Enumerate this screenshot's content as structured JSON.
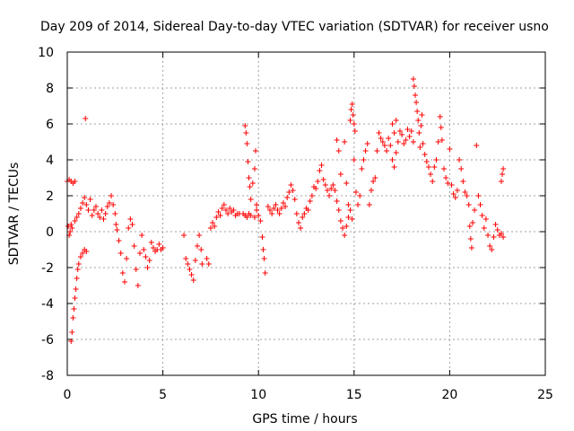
{
  "chart_data": {
    "type": "scatter",
    "title": "Day 209 of 2014, Sidereal Day-to-day VTEC variation (SDTVAR) for receiver usno",
    "xlabel": "GPS time / hours",
    "ylabel": "SDTVAR / TECUs",
    "xlim": [
      0,
      25
    ],
    "ylim": [
      -8,
      10
    ],
    "xticks": [
      "0",
      "5",
      "10",
      "15",
      "20",
      "25"
    ],
    "yticks": [
      "-8",
      "-6",
      "-4",
      "-2",
      "0",
      "2",
      "4",
      "6",
      "8",
      "10"
    ],
    "grid": true,
    "marker": "+",
    "color": "#ff0000",
    "series": [
      {
        "name": "SDTVAR",
        "points": [
          [
            0.0,
            2.8
          ],
          [
            0.1,
            2.9
          ],
          [
            0.2,
            2.8
          ],
          [
            0.3,
            2.7
          ],
          [
            0.4,
            2.8
          ],
          [
            0.05,
            0.3
          ],
          [
            0.1,
            -0.2
          ],
          [
            0.15,
            0.0
          ],
          [
            0.2,
            0.4
          ],
          [
            0.25,
            0.2
          ],
          [
            0.2,
            -6.1
          ],
          [
            0.25,
            -5.6
          ],
          [
            0.3,
            -4.8
          ],
          [
            0.35,
            -4.3
          ],
          [
            0.4,
            -3.7
          ],
          [
            0.45,
            -3.2
          ],
          [
            0.5,
            -2.6
          ],
          [
            0.55,
            -2.1
          ],
          [
            0.6,
            -1.8
          ],
          [
            0.7,
            -1.4
          ],
          [
            0.8,
            -1.2
          ],
          [
            0.9,
            -1.0
          ],
          [
            1.0,
            -1.1
          ],
          [
            0.4,
            0.6
          ],
          [
            0.5,
            0.8
          ],
          [
            0.6,
            1.0
          ],
          [
            0.7,
            1.3
          ],
          [
            0.8,
            1.6
          ],
          [
            0.9,
            1.9
          ],
          [
            1.0,
            1.5
          ],
          [
            1.1,
            1.2
          ],
          [
            1.2,
            1.8
          ],
          [
            0.95,
            6.3
          ],
          [
            1.3,
            0.9
          ],
          [
            1.4,
            1.2
          ],
          [
            1.5,
            1.4
          ],
          [
            1.6,
            1.0
          ],
          [
            1.7,
            0.8
          ],
          [
            1.8,
            1.2
          ],
          [
            1.9,
            0.7
          ],
          [
            2.0,
            1.0
          ],
          [
            2.1,
            1.4
          ],
          [
            2.2,
            1.6
          ],
          [
            2.3,
            2.0
          ],
          [
            2.4,
            1.5
          ],
          [
            2.5,
            1.0
          ],
          [
            2.55,
            0.4
          ],
          [
            2.6,
            0.1
          ],
          [
            2.7,
            -0.5
          ],
          [
            2.8,
            -1.2
          ],
          [
            2.9,
            -2.3
          ],
          [
            3.0,
            -2.8
          ],
          [
            3.1,
            -1.5
          ],
          [
            3.2,
            0.2
          ],
          [
            3.3,
            0.7
          ],
          [
            3.4,
            0.4
          ],
          [
            3.5,
            -0.8
          ],
          [
            3.6,
            -2.1
          ],
          [
            3.7,
            -3.0
          ],
          [
            3.8,
            -1.2
          ],
          [
            3.9,
            -0.2
          ],
          [
            4.0,
            -1.0
          ],
          [
            4.1,
            -1.4
          ],
          [
            4.2,
            -2.0
          ],
          [
            4.3,
            -1.6
          ],
          [
            4.4,
            -0.6
          ],
          [
            4.5,
            -0.9
          ],
          [
            4.6,
            -1.1
          ],
          [
            4.7,
            -1.0
          ],
          [
            4.8,
            -0.7
          ],
          [
            4.9,
            -1.0
          ],
          [
            5.0,
            -0.9
          ],
          [
            6.1,
            -0.2
          ],
          [
            6.2,
            -1.5
          ],
          [
            6.3,
            -1.8
          ],
          [
            6.4,
            -2.1
          ],
          [
            6.5,
            -2.4
          ],
          [
            6.6,
            -2.7
          ],
          [
            6.7,
            -1.6
          ],
          [
            6.8,
            -0.8
          ],
          [
            6.9,
            -0.2
          ],
          [
            7.0,
            -1.0
          ],
          [
            7.05,
            -1.8
          ],
          [
            7.3,
            -1.5
          ],
          [
            7.4,
            -1.8
          ],
          [
            7.5,
            0.2
          ],
          [
            7.6,
            0.5
          ],
          [
            7.7,
            0.3
          ],
          [
            7.8,
            0.8
          ],
          [
            7.9,
            1.1
          ],
          [
            8.0,
            0.9
          ],
          [
            8.1,
            1.3
          ],
          [
            8.2,
            1.5
          ],
          [
            8.3,
            1.2
          ],
          [
            8.4,
            1.0
          ],
          [
            8.5,
            1.3
          ],
          [
            8.6,
            1.1
          ],
          [
            8.7,
            1.2
          ],
          [
            8.8,
            0.9
          ],
          [
            8.9,
            1.0
          ],
          [
            9.0,
            1.0
          ],
          [
            9.3,
            5.9
          ],
          [
            9.35,
            5.5
          ],
          [
            9.4,
            4.9
          ],
          [
            9.45,
            3.9
          ],
          [
            9.5,
            3.0
          ],
          [
            9.55,
            2.5
          ],
          [
            9.6,
            1.8
          ],
          [
            9.7,
            2.7
          ],
          [
            9.8,
            3.5
          ],
          [
            9.85,
            4.5
          ],
          [
            9.9,
            1.5
          ],
          [
            9.2,
            1.0
          ],
          [
            9.3,
            0.9
          ],
          [
            9.4,
            0.8
          ],
          [
            9.5,
            1.0
          ],
          [
            9.6,
            0.9
          ],
          [
            9.8,
            0.8
          ],
          [
            9.9,
            1.2
          ],
          [
            10.0,
            0.9
          ],
          [
            10.1,
            0.6
          ],
          [
            10.2,
            -0.3
          ],
          [
            10.25,
            -1.0
          ],
          [
            10.3,
            -1.5
          ],
          [
            10.35,
            -2.3
          ],
          [
            10.5,
            1.4
          ],
          [
            10.6,
            1.2
          ],
          [
            10.7,
            1.0
          ],
          [
            10.8,
            1.3
          ],
          [
            10.9,
            1.5
          ],
          [
            11.0,
            1.2
          ],
          [
            11.1,
            1.0
          ],
          [
            11.2,
            1.3
          ],
          [
            11.3,
            1.6
          ],
          [
            11.4,
            1.4
          ],
          [
            11.5,
            1.9
          ],
          [
            11.6,
            2.2
          ],
          [
            11.7,
            2.6
          ],
          [
            11.8,
            2.3
          ],
          [
            11.9,
            1.8
          ],
          [
            12.0,
            1.0
          ],
          [
            12.1,
            0.5
          ],
          [
            12.2,
            0.2
          ],
          [
            12.3,
            0.8
          ],
          [
            12.4,
            1.0
          ],
          [
            12.5,
            1.3
          ],
          [
            12.6,
            1.2
          ],
          [
            12.7,
            1.7
          ],
          [
            12.8,
            2.0
          ],
          [
            12.9,
            2.5
          ],
          [
            13.0,
            2.4
          ],
          [
            13.1,
            2.8
          ],
          [
            13.2,
            3.4
          ],
          [
            13.3,
            3.7
          ],
          [
            13.4,
            2.9
          ],
          [
            13.5,
            2.6
          ],
          [
            13.6,
            2.3
          ],
          [
            13.7,
            2.0
          ],
          [
            13.8,
            2.4
          ],
          [
            13.9,
            2.6
          ],
          [
            14.0,
            2.3
          ],
          [
            14.1,
            1.7
          ],
          [
            14.2,
            1.2
          ],
          [
            14.3,
            0.6
          ],
          [
            14.4,
            0.2
          ],
          [
            14.5,
            -0.2
          ],
          [
            14.6,
            0.3
          ],
          [
            14.7,
            0.8
          ],
          [
            14.8,
            1.2
          ],
          [
            14.9,
            0.7
          ],
          [
            14.1,
            5.1
          ],
          [
            14.2,
            4.5
          ],
          [
            14.3,
            3.2
          ],
          [
            14.5,
            5.0
          ],
          [
            14.6,
            2.7
          ],
          [
            14.7,
            1.5
          ],
          [
            14.8,
            6.2
          ],
          [
            14.85,
            6.8
          ],
          [
            14.9,
            7.1
          ],
          [
            14.95,
            6.5
          ],
          [
            15.0,
            6.0
          ],
          [
            15.05,
            5.6
          ],
          [
            15.0,
            4.0
          ],
          [
            15.1,
            2.2
          ],
          [
            15.2,
            1.5
          ],
          [
            15.3,
            2.0
          ],
          [
            15.4,
            3.5
          ],
          [
            15.5,
            4.0
          ],
          [
            15.6,
            4.5
          ],
          [
            15.7,
            4.9
          ],
          [
            15.8,
            1.5
          ],
          [
            15.9,
            2.3
          ],
          [
            16.0,
            2.8
          ],
          [
            16.1,
            3.0
          ],
          [
            16.2,
            4.5
          ],
          [
            16.3,
            5.5
          ],
          [
            16.4,
            5.2
          ],
          [
            16.5,
            5.0
          ],
          [
            16.6,
            4.8
          ],
          [
            16.7,
            4.5
          ],
          [
            16.8,
            5.2
          ],
          [
            16.9,
            4.8
          ],
          [
            17.0,
            4.0
          ],
          [
            17.1,
            3.6
          ],
          [
            17.2,
            4.4
          ],
          [
            17.3,
            5.0
          ],
          [
            17.4,
            5.6
          ],
          [
            17.5,
            5.4
          ],
          [
            17.6,
            4.9
          ],
          [
            17.7,
            5.1
          ],
          [
            17.8,
            5.7
          ],
          [
            17.9,
            5.3
          ],
          [
            18.0,
            5.6
          ],
          [
            18.1,
            5.0
          ],
          [
            17.0,
            6.0
          ],
          [
            17.1,
            5.5
          ],
          [
            17.2,
            6.2
          ],
          [
            18.1,
            8.5
          ],
          [
            18.15,
            8.1
          ],
          [
            18.2,
            7.6
          ],
          [
            18.25,
            7.2
          ],
          [
            18.3,
            6.7
          ],
          [
            18.35,
            6.2
          ],
          [
            18.4,
            5.5
          ],
          [
            18.45,
            4.7
          ],
          [
            18.5,
            5.9
          ],
          [
            18.55,
            6.5
          ],
          [
            18.6,
            4.9
          ],
          [
            18.7,
            4.3
          ],
          [
            18.8,
            3.9
          ],
          [
            18.9,
            3.6
          ],
          [
            19.0,
            3.2
          ],
          [
            19.1,
            2.8
          ],
          [
            19.2,
            3.6
          ],
          [
            19.3,
            4.0
          ],
          [
            19.4,
            5.0
          ],
          [
            19.5,
            6.4
          ],
          [
            19.55,
            5.8
          ],
          [
            19.6,
            5.1
          ],
          [
            19.7,
            3.5
          ],
          [
            19.8,
            3.0
          ],
          [
            19.9,
            2.7
          ],
          [
            20.0,
            4.6
          ],
          [
            20.1,
            2.6
          ],
          [
            20.2,
            2.1
          ],
          [
            20.3,
            1.9
          ],
          [
            20.4,
            2.3
          ],
          [
            20.5,
            4.0
          ],
          [
            20.6,
            3.5
          ],
          [
            20.7,
            2.8
          ],
          [
            20.8,
            2.2
          ],
          [
            20.9,
            2.0
          ],
          [
            21.0,
            1.5
          ],
          [
            21.05,
            0.3
          ],
          [
            21.1,
            -0.4
          ],
          [
            21.15,
            -0.9
          ],
          [
            21.2,
            0.5
          ],
          [
            21.3,
            1.2
          ],
          [
            21.4,
            4.8
          ],
          [
            21.5,
            2.0
          ],
          [
            21.6,
            1.5
          ],
          [
            21.7,
            0.9
          ],
          [
            21.8,
            0.2
          ],
          [
            21.9,
            0.7
          ],
          [
            22.0,
            -0.2
          ],
          [
            22.1,
            -0.8
          ],
          [
            22.2,
            -1.0
          ],
          [
            22.3,
            -0.3
          ],
          [
            22.4,
            0.4
          ],
          [
            22.5,
            0.1
          ],
          [
            22.6,
            -0.2
          ],
          [
            22.7,
            -0.1
          ],
          [
            22.8,
            -0.3
          ],
          [
            22.7,
            2.8
          ],
          [
            22.75,
            3.2
          ],
          [
            22.8,
            3.5
          ]
        ]
      }
    ]
  }
}
